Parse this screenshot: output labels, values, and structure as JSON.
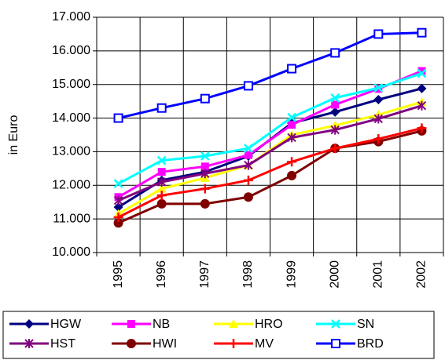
{
  "chart_data": {
    "type": "line",
    "y_label": "in Euro",
    "categories": [
      "1995",
      "1996",
      "1997",
      "1998",
      "1999",
      "2000",
      "2001",
      "2002"
    ],
    "series": [
      {
        "name": "HGW",
        "color": "#000080",
        "marker": "diamond",
        "values": [
          11350,
          12150,
          12400,
          12870,
          13850,
          14180,
          14550,
          14880
        ]
      },
      {
        "name": "NB",
        "color": "#FF00FF",
        "marker": "square",
        "values": [
          11650,
          12400,
          12560,
          12900,
          13800,
          14400,
          14870,
          15400
        ]
      },
      {
        "name": "HRO",
        "color": "#FFFF00",
        "marker": "triangle",
        "values": [
          11150,
          11900,
          12220,
          12600,
          13500,
          13780,
          14100,
          14480
        ]
      },
      {
        "name": "SN",
        "color": "#00FFFF",
        "marker": "x",
        "values": [
          12050,
          12740,
          12870,
          13100,
          14020,
          14600,
          14900,
          15330
        ]
      },
      {
        "name": "HST",
        "color": "#800080",
        "marker": "asterisk",
        "values": [
          11550,
          12100,
          12350,
          12600,
          13420,
          13650,
          13980,
          14370
        ]
      },
      {
        "name": "HWI",
        "color": "#800000",
        "marker": "circle",
        "values": [
          10880,
          11450,
          11450,
          11650,
          12290,
          13100,
          13300,
          13620
        ]
      },
      {
        "name": "MV",
        "color": "#FF0000",
        "marker": "plus",
        "values": [
          11050,
          11700,
          11900,
          12150,
          12700,
          13100,
          13380,
          13700
        ]
      },
      {
        "name": "BRD",
        "color": "#0000FF",
        "marker": "open-square",
        "values": [
          14000,
          14300,
          14580,
          14960,
          15470,
          15940,
          16500,
          16540
        ]
      }
    ],
    "ylim": [
      10000,
      17000
    ],
    "yticks": [
      {
        "value": 10000,
        "label": "10.000"
      },
      {
        "value": 11000,
        "label": "11.000"
      },
      {
        "value": 12000,
        "label": "12.000"
      },
      {
        "value": 13000,
        "label": "13.000"
      },
      {
        "value": 14000,
        "label": "14.000"
      },
      {
        "value": 15000,
        "label": "15.000"
      },
      {
        "value": 16000,
        "label": "16.000"
      },
      {
        "value": 17000,
        "label": "17.000"
      }
    ],
    "grid": true
  }
}
